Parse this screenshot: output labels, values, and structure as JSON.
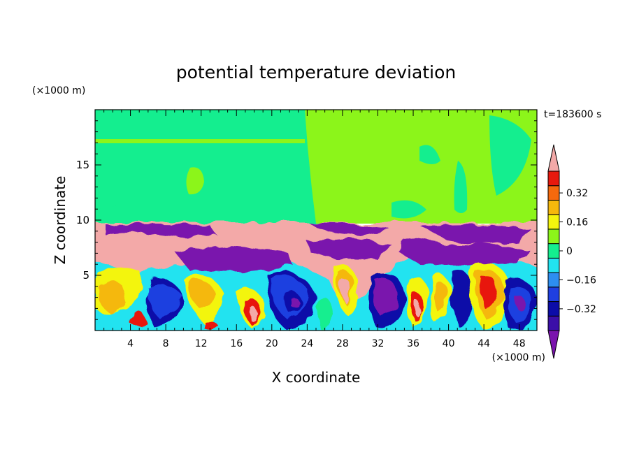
{
  "chart_data": {
    "type": "heatmap",
    "title": "potential temperature deviation",
    "time_label": "t=183600 s",
    "xlabel": "X coordinate",
    "ylabel": "Z coordinate",
    "x_unit": "(×1000 m)",
    "y_unit": "(×1000 m)",
    "xlim": [
      0,
      50
    ],
    "ylim": [
      0,
      20
    ],
    "x_ticks": [
      4,
      8,
      12,
      16,
      20,
      24,
      28,
      32,
      36,
      40,
      44,
      48
    ],
    "y_ticks": [
      5,
      10,
      15
    ],
    "colorbar": {
      "levels": [
        -0.48,
        -0.4,
        -0.32,
        -0.24,
        -0.16,
        -0.08,
        0,
        0.08,
        0.16,
        0.24,
        0.32,
        0.4,
        0.48
      ],
      "colors": [
        "#7a13ad",
        "#3b0fa8",
        "#0c0ca8",
        "#1f3fe0",
        "#2d8ef0",
        "#22e3f0",
        "#14ee8f",
        "#8cf51a",
        "#f3f50e",
        "#f5b80c",
        "#f5690d",
        "#e8190e",
        "#f3a9a8"
      ],
      "tick_labels": [
        "0.32",
        "0.16",
        "0",
        "−0.16",
        "−0.32"
      ],
      "tick_values": [
        0.32,
        0.16,
        0,
        -0.16,
        -0.32
      ]
    },
    "regions": [
      {
        "description": "upper layer z 10-20",
        "value": 0.0
      },
      {
        "description": "upper layer right half z 10-20",
        "value": 0.08
      }
    ]
  }
}
